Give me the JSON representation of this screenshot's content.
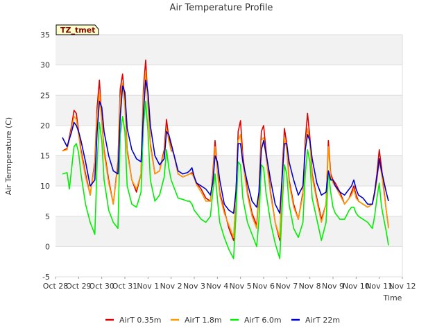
{
  "chart_data": {
    "type": "line",
    "title": "Air Temperature Profile",
    "xlabel": "Time",
    "ylabel": "Air Termperature (C)",
    "badge": "TZ_tmet",
    "ylim": [
      -5,
      35
    ],
    "yticks": [
      -5,
      0,
      5,
      10,
      15,
      20,
      25,
      30,
      35
    ],
    "xlim": [
      0,
      15
    ],
    "xticks": [
      {
        "label": "Oct 28",
        "x": 0
      },
      {
        "label": "Oct 29",
        "x": 1
      },
      {
        "label": "Oct 30",
        "x": 2
      },
      {
        "label": "Oct 31",
        "x": 3
      },
      {
        "label": "Nov 1",
        "x": 4
      },
      {
        "label": "Nov 2",
        "x": 5
      },
      {
        "label": "Nov 3",
        "x": 6
      },
      {
        "label": "Nov 4",
        "x": 7
      },
      {
        "label": "Nov 5",
        "x": 8
      },
      {
        "label": "Nov 6",
        "x": 9
      },
      {
        "label": "Nov 7",
        "x": 10
      },
      {
        "label": "Nov 8",
        "x": 11
      },
      {
        "label": "Nov 9",
        "x": 12
      },
      {
        "label": "Nov 10",
        "x": 13
      },
      {
        "label": "Nov 11",
        "x": 14
      },
      {
        "label": "Nov 12",
        "x": 15
      }
    ],
    "grid": true,
    "legend_position": "bottom",
    "series": [
      {
        "name": "AirT 0.35m",
        "color": "#dd0000",
        "x": [
          0.3,
          0.5,
          0.7,
          0.8,
          0.9,
          1.0,
          1.1,
          1.3,
          1.5,
          1.7,
          1.8,
          1.9,
          2.0,
          2.1,
          2.3,
          2.5,
          2.7,
          2.8,
          2.9,
          3.0,
          3.1,
          3.3,
          3.5,
          3.7,
          3.8,
          3.9,
          4.0,
          4.1,
          4.3,
          4.5,
          4.7,
          4.8,
          4.9,
          5.0,
          5.1,
          5.3,
          5.5,
          5.7,
          5.8,
          5.9,
          6.0,
          6.1,
          6.3,
          6.5,
          6.7,
          6.8,
          6.9,
          7.0,
          7.1,
          7.3,
          7.5,
          7.7,
          7.8,
          7.9,
          8.0,
          8.1,
          8.3,
          8.5,
          8.7,
          8.8,
          8.9,
          9.0,
          9.1,
          9.3,
          9.5,
          9.7,
          9.8,
          9.9,
          10.0,
          10.1,
          10.3,
          10.5,
          10.7,
          10.8,
          10.9,
          11.0,
          11.1,
          11.3,
          11.5,
          11.7,
          11.8,
          11.9,
          12.0,
          12.1,
          12.3,
          12.5,
          12.7,
          12.8,
          12.9,
          13.0,
          13.1,
          13.3,
          13.5,
          13.7,
          13.8,
          13.9,
          14.0,
          14.1,
          14.3,
          14.4
        ],
        "y": [
          15.8,
          16.2,
          20.0,
          22.5,
          22.0,
          19.0,
          16.0,
          12.0,
          8.5,
          14.0,
          23.0,
          27.5,
          21.0,
          16.0,
          11.0,
          7.0,
          14.0,
          26.0,
          28.5,
          24.0,
          16.0,
          11.0,
          9.0,
          12.0,
          26.0,
          30.8,
          24.0,
          17.0,
          12.0,
          12.5,
          16.0,
          21.0,
          18.0,
          16.0,
          15.5,
          12.0,
          11.5,
          11.8,
          12.0,
          12.2,
          11.5,
          10.5,
          9.5,
          8.0,
          7.5,
          12.0,
          17.5,
          13.0,
          9.0,
          6.0,
          3.0,
          1.0,
          8.0,
          19.0,
          20.8,
          15.0,
          9.0,
          5.5,
          3.5,
          9.0,
          19.0,
          20.0,
          16.0,
          9.0,
          4.0,
          1.0,
          12.0,
          19.5,
          17.0,
          11.0,
          7.0,
          4.5,
          9.0,
          17.5,
          22.0,
          18.0,
          12.0,
          8.0,
          4.5,
          7.0,
          17.5,
          12.0,
          11.0,
          10.5,
          9.0,
          7.0,
          8.0,
          9.0,
          10.0,
          8.5,
          7.5,
          7.0,
          6.5,
          7.0,
          9.0,
          12.0,
          16.0,
          13.0,
          6.0,
          3.2
        ]
      },
      {
        "name": "AirT 1.8m",
        "color": "#ff9900",
        "x": [
          0.3,
          0.5,
          0.7,
          0.8,
          0.9,
          1.0,
          1.1,
          1.3,
          1.5,
          1.7,
          1.8,
          1.9,
          2.0,
          2.1,
          2.3,
          2.5,
          2.7,
          2.8,
          2.9,
          3.0,
          3.1,
          3.3,
          3.5,
          3.7,
          3.8,
          3.9,
          4.0,
          4.1,
          4.3,
          4.5,
          4.7,
          4.8,
          4.9,
          5.0,
          5.1,
          5.3,
          5.5,
          5.7,
          5.8,
          5.9,
          6.0,
          6.1,
          6.3,
          6.5,
          6.7,
          6.8,
          6.9,
          7.0,
          7.1,
          7.3,
          7.5,
          7.7,
          7.8,
          7.9,
          8.0,
          8.1,
          8.3,
          8.5,
          8.7,
          8.8,
          8.9,
          9.0,
          9.1,
          9.3,
          9.5,
          9.7,
          9.8,
          9.9,
          10.0,
          10.1,
          10.3,
          10.5,
          10.7,
          10.8,
          10.9,
          11.0,
          11.1,
          11.3,
          11.5,
          11.7,
          11.8,
          11.9,
          12.0,
          12.1,
          12.3,
          12.5,
          12.7,
          12.8,
          12.9,
          13.0,
          13.1,
          13.3,
          13.5,
          13.7,
          13.8,
          13.9,
          14.0,
          14.1,
          14.3,
          14.4
        ],
        "y": [
          15.8,
          16.0,
          19.5,
          21.5,
          21.0,
          18.5,
          15.5,
          11.5,
          8.5,
          13.5,
          21.5,
          25.5,
          20.5,
          15.5,
          10.5,
          7.0,
          13.5,
          24.5,
          27.0,
          23.0,
          15.5,
          11.0,
          9.5,
          12.0,
          24.5,
          29.0,
          23.0,
          16.5,
          12.0,
          12.5,
          15.5,
          19.5,
          17.5,
          15.8,
          15.5,
          12.0,
          11.5,
          11.8,
          12.0,
          12.0,
          11.3,
          10.2,
          9.0,
          7.5,
          7.5,
          11.5,
          16.5,
          12.5,
          8.5,
          5.5,
          3.5,
          1.5,
          7.5,
          17.5,
          18.5,
          14.0,
          8.5,
          5.0,
          3.0,
          8.5,
          17.5,
          18.0,
          15.0,
          8.5,
          4.0,
          1.5,
          11.0,
          18.0,
          16.0,
          10.5,
          6.5,
          4.5,
          8.5,
          16.5,
          19.5,
          17.0,
          11.5,
          7.5,
          4.0,
          7.0,
          16.5,
          11.5,
          10.5,
          10.0,
          8.5,
          7.0,
          8.0,
          8.5,
          9.5,
          8.0,
          7.5,
          7.0,
          6.5,
          7.0,
          8.5,
          11.0,
          14.0,
          12.0,
          6.0,
          3.0
        ]
      },
      {
        "name": "AirT 6.0m",
        "color": "#00ee00",
        "x": [
          0.3,
          0.5,
          0.6,
          0.8,
          0.9,
          1.0,
          1.1,
          1.3,
          1.5,
          1.7,
          1.8,
          1.9,
          2.0,
          2.1,
          2.3,
          2.5,
          2.7,
          2.8,
          2.9,
          3.0,
          3.1,
          3.3,
          3.5,
          3.7,
          3.8,
          3.9,
          4.0,
          4.1,
          4.3,
          4.5,
          4.7,
          4.8,
          4.9,
          5.0,
          5.1,
          5.3,
          5.5,
          5.7,
          5.8,
          5.9,
          6.0,
          6.1,
          6.3,
          6.5,
          6.7,
          6.8,
          6.9,
          7.0,
          7.1,
          7.3,
          7.5,
          7.7,
          7.8,
          7.9,
          8.0,
          8.1,
          8.3,
          8.5,
          8.7,
          8.8,
          8.9,
          9.0,
          9.1,
          9.3,
          9.5,
          9.7,
          9.8,
          9.9,
          10.0,
          10.1,
          10.3,
          10.5,
          10.7,
          10.8,
          10.9,
          11.0,
          11.1,
          11.3,
          11.5,
          11.7,
          11.8,
          11.9,
          12.0,
          12.1,
          12.3,
          12.5,
          12.7,
          12.8,
          12.9,
          13.0,
          13.1,
          13.3,
          13.5,
          13.7,
          13.8,
          13.9,
          14.0,
          14.1,
          14.3,
          14.4
        ],
        "y": [
          12.0,
          12.2,
          9.5,
          16.5,
          17.0,
          15.5,
          12.0,
          7.0,
          4.0,
          2.0,
          14.0,
          20.5,
          17.5,
          11.0,
          6.0,
          4.0,
          3.0,
          18.5,
          21.5,
          19.0,
          10.0,
          7.0,
          6.5,
          9.0,
          20.0,
          24.0,
          19.0,
          11.0,
          7.5,
          8.5,
          11.5,
          16.0,
          13.0,
          11.0,
          10.0,
          8.0,
          7.8,
          7.5,
          7.5,
          7.0,
          6.0,
          5.5,
          4.5,
          4.0,
          5.0,
          9.0,
          12.0,
          8.0,
          4.0,
          1.5,
          -0.5,
          -2.0,
          5.0,
          14.0,
          13.5,
          8.0,
          4.0,
          2.0,
          0.0,
          4.5,
          13.5,
          13.0,
          9.0,
          4.0,
          0.5,
          -2.0,
          6.5,
          13.5,
          12.0,
          7.0,
          3.0,
          1.5,
          4.0,
          12.0,
          16.0,
          14.0,
          8.0,
          4.5,
          1.0,
          4.0,
          12.5,
          9.0,
          6.5,
          5.5,
          4.5,
          4.5,
          6.0,
          6.5,
          6.5,
          5.5,
          5.0,
          4.5,
          4.0,
          3.0,
          5.0,
          8.0,
          10.5,
          6.5,
          2.5,
          0.2
        ]
      },
      {
        "name": "AirT 22m",
        "color": "#0000cc",
        "x": [
          0.3,
          0.5,
          0.7,
          0.8,
          0.9,
          1.0,
          1.1,
          1.3,
          1.5,
          1.7,
          1.8,
          1.9,
          2.0,
          2.1,
          2.3,
          2.5,
          2.7,
          2.8,
          2.9,
          3.0,
          3.1,
          3.3,
          3.5,
          3.7,
          3.8,
          3.9,
          4.0,
          4.1,
          4.3,
          4.5,
          4.7,
          4.8,
          4.9,
          5.0,
          5.1,
          5.3,
          5.5,
          5.7,
          5.8,
          5.9,
          6.0,
          6.1,
          6.3,
          6.5,
          6.7,
          6.8,
          6.9,
          7.0,
          7.1,
          7.3,
          7.5,
          7.7,
          7.8,
          7.9,
          8.0,
          8.1,
          8.3,
          8.5,
          8.7,
          8.8,
          8.9,
          9.0,
          9.1,
          9.3,
          9.5,
          9.7,
          9.8,
          9.9,
          10.0,
          10.1,
          10.3,
          10.5,
          10.7,
          10.8,
          10.9,
          11.0,
          11.1,
          11.3,
          11.5,
          11.7,
          11.8,
          11.9,
          12.0,
          12.1,
          12.3,
          12.5,
          12.7,
          12.8,
          12.9,
          13.0,
          13.1,
          13.3,
          13.5,
          13.7,
          13.8,
          13.9,
          14.0,
          14.1,
          14.3,
          14.4
        ],
        "y": [
          18.0,
          16.5,
          19.0,
          20.5,
          20.0,
          19.0,
          17.5,
          14.0,
          10.0,
          11.0,
          19.0,
          24.0,
          23.0,
          19.0,
          15.0,
          12.5,
          12.0,
          21.5,
          26.5,
          25.5,
          19.5,
          16.0,
          14.5,
          14.0,
          22.0,
          27.5,
          25.5,
          20.0,
          15.0,
          13.5,
          14.5,
          19.0,
          18.5,
          17.0,
          15.5,
          12.5,
          12.0,
          12.2,
          12.5,
          13.0,
          11.5,
          10.5,
          10.0,
          9.5,
          8.5,
          10.5,
          15.0,
          14.0,
          11.0,
          7.0,
          6.0,
          5.5,
          9.0,
          17.0,
          17.0,
          14.0,
          10.5,
          7.5,
          6.5,
          9.0,
          16.0,
          17.5,
          15.5,
          11.0,
          7.0,
          5.5,
          11.5,
          17.0,
          17.0,
          14.0,
          11.0,
          8.5,
          10.0,
          16.0,
          18.5,
          17.5,
          14.5,
          10.5,
          8.5,
          9.0,
          12.5,
          11.0,
          11.0,
          10.0,
          9.0,
          8.5,
          9.5,
          10.0,
          11.0,
          9.5,
          8.5,
          8.0,
          7.0,
          7.0,
          9.0,
          11.5,
          14.5,
          12.5,
          9.0,
          7.5
        ]
      }
    ]
  }
}
